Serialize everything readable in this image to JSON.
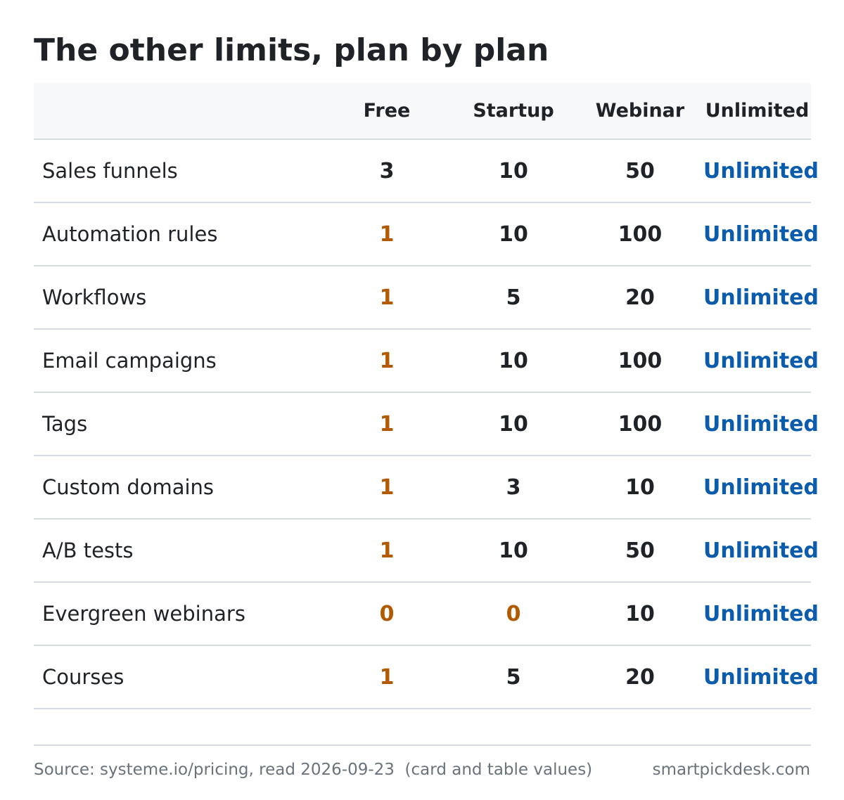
{
  "title": "The other limits, plan by plan",
  "colors": {
    "text": "#1f2328",
    "low_limit": "#b35900",
    "unlimited": "#0b5cad",
    "header_bg": "#f6f8fa",
    "rule": "#d5dbe4",
    "muted": "#6a737d"
  },
  "table": {
    "columns": [
      "",
      "Free",
      "Startup",
      "Webinar",
      "Unlimited"
    ],
    "rows": [
      {
        "feature": "Sales funnels",
        "free": "3",
        "startup": "10",
        "webinar": "50",
        "unlimited": "Unlimited"
      },
      {
        "feature": "Automation rules",
        "free": "1",
        "startup": "10",
        "webinar": "100",
        "unlimited": "Unlimited"
      },
      {
        "feature": "Workflows",
        "free": "1",
        "startup": "5",
        "webinar": "20",
        "unlimited": "Unlimited"
      },
      {
        "feature": "Email campaigns",
        "free": "1",
        "startup": "10",
        "webinar": "100",
        "unlimited": "Unlimited"
      },
      {
        "feature": "Tags",
        "free": "1",
        "startup": "10",
        "webinar": "100",
        "unlimited": "Unlimited"
      },
      {
        "feature": "Custom domains",
        "free": "1",
        "startup": "3",
        "webinar": "10",
        "unlimited": "Unlimited"
      },
      {
        "feature": "A/B tests",
        "free": "1",
        "startup": "10",
        "webinar": "50",
        "unlimited": "Unlimited"
      },
      {
        "feature": "Evergreen webinars",
        "free": "0",
        "startup": "0",
        "webinar": "10",
        "unlimited": "Unlimited"
      },
      {
        "feature": "Courses",
        "free": "1",
        "startup": "5",
        "webinar": "20",
        "unlimited": "Unlimited"
      }
    ]
  },
  "footer": {
    "source": "Source: systeme.io/pricing, read 2026-09-23  (card and table values)",
    "site": "smartpickdesk.com"
  }
}
